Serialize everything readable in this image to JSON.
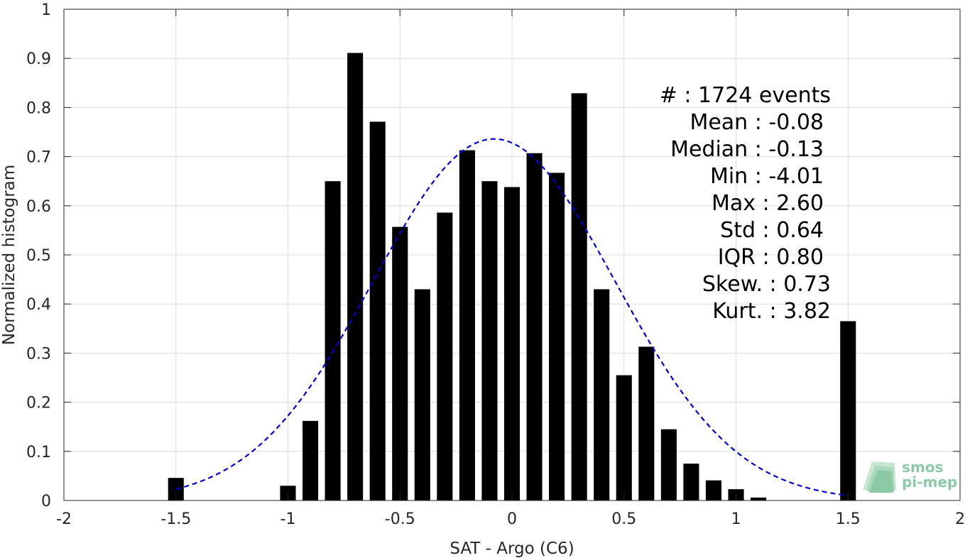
{
  "chart_data": {
    "type": "bar",
    "xlabel": "SAT - Argo (C6)",
    "ylabel": "Normalized histogram",
    "xlim": [
      -2,
      2
    ],
    "ylim": [
      0,
      1
    ],
    "grid": true,
    "xticks": [
      -2,
      -1.5,
      -1,
      -0.5,
      0,
      0.5,
      1,
      1.5,
      2
    ],
    "xtick_labels": [
      "-2",
      "-1.5",
      "-1",
      "-0.5",
      "0",
      "0.5",
      "1",
      "1.5",
      "2"
    ],
    "yticks": [
      0,
      0.1,
      0.2,
      0.3,
      0.4,
      0.5,
      0.6,
      0.7,
      0.8,
      0.9,
      1
    ],
    "ytick_labels": [
      "0",
      "0.1",
      "0.2",
      "0.3",
      "0.4",
      "0.5",
      "0.6",
      "0.7",
      "0.8",
      "0.9",
      "1"
    ],
    "bar_width": 0.07,
    "bar_color": "#000000",
    "bars": [
      {
        "x": -1.5,
        "y": 0.046
      },
      {
        "x": -1.0,
        "y": 0.03
      },
      {
        "x": -0.9,
        "y": 0.162
      },
      {
        "x": -0.8,
        "y": 0.65
      },
      {
        "x": -0.7,
        "y": 0.911
      },
      {
        "x": -0.6,
        "y": 0.771
      },
      {
        "x": -0.5,
        "y": 0.557
      },
      {
        "x": -0.4,
        "y": 0.43
      },
      {
        "x": -0.3,
        "y": 0.586
      },
      {
        "x": -0.2,
        "y": 0.713
      },
      {
        "x": -0.1,
        "y": 0.65
      },
      {
        "x": 0.0,
        "y": 0.638
      },
      {
        "x": 0.1,
        "y": 0.707
      },
      {
        "x": 0.2,
        "y": 0.667
      },
      {
        "x": 0.3,
        "y": 0.829
      },
      {
        "x": 0.4,
        "y": 0.43
      },
      {
        "x": 0.5,
        "y": 0.255
      },
      {
        "x": 0.6,
        "y": 0.313
      },
      {
        "x": 0.7,
        "y": 0.145
      },
      {
        "x": 0.8,
        "y": 0.075
      },
      {
        "x": 0.9,
        "y": 0.041
      },
      {
        "x": 1.0,
        "y": 0.023
      },
      {
        "x": 1.1,
        "y": 0.006
      },
      {
        "x": 1.5,
        "y": 0.365
      }
    ],
    "gaussian_fit": {
      "mean": -0.08,
      "std": 0.54,
      "peak": 0.736,
      "x_range": [
        -1.5,
        1.5
      ],
      "color": "#0000dd",
      "style": "dashed"
    },
    "stats": [
      {
        "label": "#  : 1724 events",
        "indent": 0
      },
      {
        "label": "Mean : -0.08",
        "indent": 1
      },
      {
        "label": "Median : -0.13",
        "indent": 1
      },
      {
        "label": "Min : -4.01",
        "indent": 1
      },
      {
        "label": "Max : 2.60",
        "indent": 1
      },
      {
        "label": "Std : 0.64",
        "indent": 1
      },
      {
        "label": "IQR : 0.80",
        "indent": 1
      },
      {
        "label": "Skew. : 0.73",
        "indent": 0
      },
      {
        "label": "Kurt. : 3.82",
        "indent": 0
      }
    ],
    "logo": {
      "line1": "smos",
      "line2": "pi-mep",
      "color": "#8cc9a6"
    }
  }
}
